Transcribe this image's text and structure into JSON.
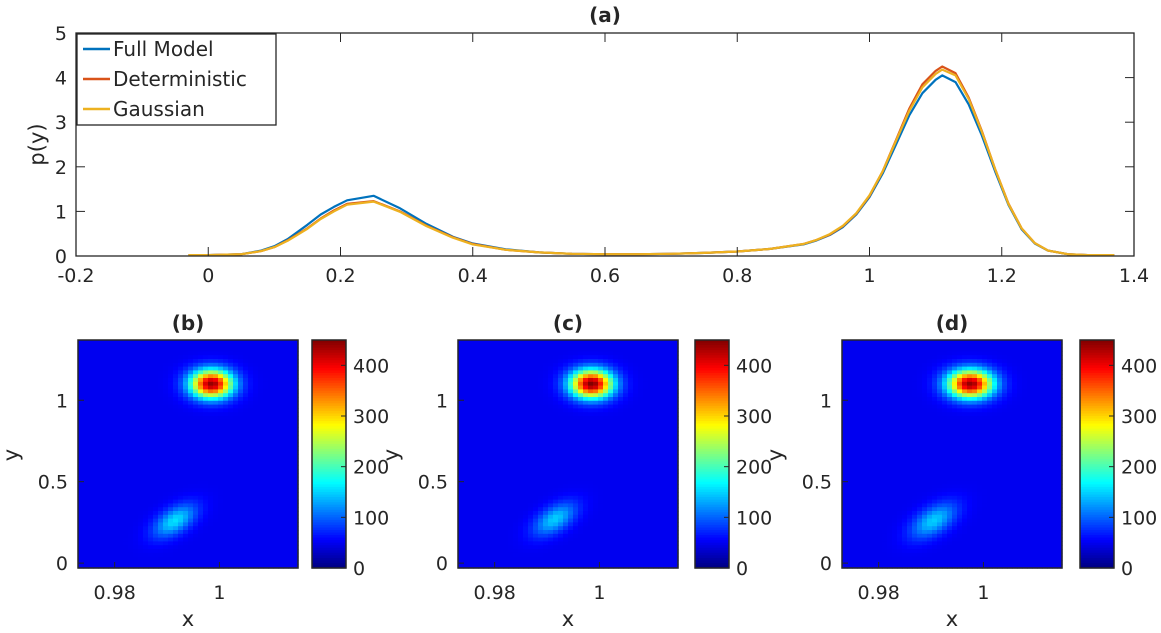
{
  "figure": {
    "background": "#ffffff"
  },
  "chart_data": [
    {
      "type": "line",
      "title": "(a)",
      "xlabel": "",
      "ylabel": "p(y)",
      "xlim": [
        -0.2,
        1.4
      ],
      "ylim": [
        0,
        5
      ],
      "xticks": [
        -0.2,
        0,
        0.2,
        0.4,
        0.6,
        0.8,
        1,
        1.2,
        1.4
      ],
      "xtick_labels": [
        "-0.2",
        "0",
        "0.2",
        "0.4",
        "0.6",
        "0.8",
        "1",
        "1.2",
        "1.4"
      ],
      "yticks": [
        0,
        1,
        2,
        3,
        4,
        5
      ],
      "ytick_labels": [
        "0",
        "1",
        "2",
        "3",
        "4",
        "5"
      ],
      "grid": false,
      "legend": "top-left",
      "x": [
        -0.03,
        0.0,
        0.05,
        0.08,
        0.1,
        0.12,
        0.15,
        0.17,
        0.19,
        0.21,
        0.25,
        0.29,
        0.33,
        0.37,
        0.4,
        0.45,
        0.5,
        0.55,
        0.6,
        0.65,
        0.7,
        0.75,
        0.8,
        0.85,
        0.9,
        0.92,
        0.94,
        0.96,
        0.98,
        1.0,
        1.02,
        1.04,
        1.06,
        1.08,
        1.1,
        1.11,
        1.13,
        1.15,
        1.17,
        1.19,
        1.21,
        1.23,
        1.25,
        1.27,
        1.3,
        1.33,
        1.37
      ],
      "series": [
        {
          "name": "Full Model",
          "color": "#0072BD",
          "values": [
            0.02,
            0.02,
            0.04,
            0.12,
            0.22,
            0.38,
            0.7,
            0.93,
            1.1,
            1.25,
            1.35,
            1.07,
            0.72,
            0.43,
            0.28,
            0.15,
            0.08,
            0.05,
            0.04,
            0.04,
            0.05,
            0.07,
            0.1,
            0.16,
            0.26,
            0.35,
            0.47,
            0.65,
            0.93,
            1.32,
            1.85,
            2.5,
            3.15,
            3.65,
            3.95,
            4.05,
            3.9,
            3.4,
            2.7,
            1.9,
            1.15,
            0.6,
            0.28,
            0.12,
            0.04,
            0.02,
            0.02
          ]
        },
        {
          "name": "Deterministic",
          "color": "#D95319",
          "values": [
            0.02,
            0.02,
            0.04,
            0.11,
            0.2,
            0.35,
            0.62,
            0.84,
            1.02,
            1.17,
            1.23,
            1.0,
            0.68,
            0.42,
            0.27,
            0.14,
            0.08,
            0.05,
            0.04,
            0.04,
            0.05,
            0.07,
            0.1,
            0.16,
            0.27,
            0.36,
            0.48,
            0.67,
            0.95,
            1.35,
            1.9,
            2.6,
            3.3,
            3.85,
            4.15,
            4.25,
            4.1,
            3.55,
            2.8,
            1.95,
            1.18,
            0.62,
            0.29,
            0.12,
            0.04,
            0.02,
            0.02
          ]
        },
        {
          "name": "Gaussian",
          "color": "#EDB120",
          "values": [
            0.02,
            0.02,
            0.04,
            0.11,
            0.2,
            0.34,
            0.61,
            0.83,
            1.0,
            1.15,
            1.22,
            0.99,
            0.67,
            0.41,
            0.26,
            0.14,
            0.08,
            0.05,
            0.04,
            0.04,
            0.05,
            0.07,
            0.1,
            0.16,
            0.27,
            0.36,
            0.49,
            0.68,
            0.96,
            1.36,
            1.9,
            2.58,
            3.25,
            3.78,
            4.08,
            4.18,
            4.05,
            3.52,
            2.78,
            1.95,
            1.17,
            0.62,
            0.29,
            0.12,
            0.04,
            0.02,
            0.02
          ]
        }
      ]
    },
    {
      "type": "heatmap",
      "title": "(b)",
      "xlabel": "x",
      "ylabel": "y",
      "xlim": [
        0.973,
        1.015
      ],
      "ylim": [
        -0.03,
        1.37
      ],
      "xticks": [
        0.98,
        1
      ],
      "xtick_labels": [
        "0.98",
        "1"
      ],
      "yticks": [
        0,
        0.5,
        1
      ],
      "ytick_labels": [
        "0",
        "0.5",
        "1"
      ],
      "colorbar": {
        "ticks": [
          0,
          100,
          200,
          300,
          400
        ],
        "tick_labels": [
          "0",
          "100",
          "200",
          "300",
          "400"
        ],
        "range": [
          0,
          450
        ]
      },
      "blobs": [
        {
          "cx": 0.9985,
          "cy": 1.1,
          "sx": 0.0028,
          "sy": 0.06,
          "peak": 440,
          "corr": 0
        },
        {
          "cx": 0.9915,
          "cy": 0.26,
          "sx": 0.0028,
          "sy": 0.07,
          "peak": 120,
          "corr": 0.55
        }
      ]
    },
    {
      "type": "heatmap",
      "title": "(c)",
      "xlabel": "x",
      "ylabel": "y",
      "xlim": [
        0.973,
        1.015
      ],
      "ylim": [
        -0.03,
        1.37
      ],
      "xticks": [
        0.98,
        1
      ],
      "xtick_labels": [
        "0.98",
        "1"
      ],
      "yticks": [
        0,
        0.5,
        1
      ],
      "ytick_labels": [
        "0",
        "0.5",
        "1"
      ],
      "colorbar": {
        "ticks": [
          0,
          100,
          200,
          300,
          400
        ],
        "tick_labels": [
          "0",
          "100",
          "200",
          "300",
          "400"
        ],
        "range": [
          0,
          450
        ]
      },
      "blobs": [
        {
          "cx": 0.9985,
          "cy": 1.1,
          "sx": 0.0028,
          "sy": 0.06,
          "peak": 450,
          "corr": 0
        },
        {
          "cx": 0.9915,
          "cy": 0.27,
          "sx": 0.0028,
          "sy": 0.07,
          "peak": 110,
          "corr": 0.55
        }
      ]
    },
    {
      "type": "heatmap",
      "title": "(d)",
      "xlabel": "x",
      "ylabel": "y",
      "xlim": [
        0.973,
        1.015
      ],
      "ylim": [
        -0.03,
        1.37
      ],
      "xticks": [
        0.98,
        1
      ],
      "xtick_labels": [
        "0.98",
        "1"
      ],
      "yticks": [
        0,
        0.5,
        1
      ],
      "ytick_labels": [
        "0",
        "0.5",
        "1"
      ],
      "colorbar": {
        "ticks": [
          0,
          100,
          200,
          300,
          400
        ],
        "tick_labels": [
          "0",
          "100",
          "200",
          "300",
          "400"
        ],
        "range": [
          0,
          450
        ]
      },
      "blobs": [
        {
          "cx": 0.9975,
          "cy": 1.1,
          "sx": 0.003,
          "sy": 0.06,
          "peak": 440,
          "corr": 0
        },
        {
          "cx": 0.9905,
          "cy": 0.26,
          "sx": 0.003,
          "sy": 0.075,
          "peak": 110,
          "corr": 0.55
        }
      ]
    }
  ]
}
